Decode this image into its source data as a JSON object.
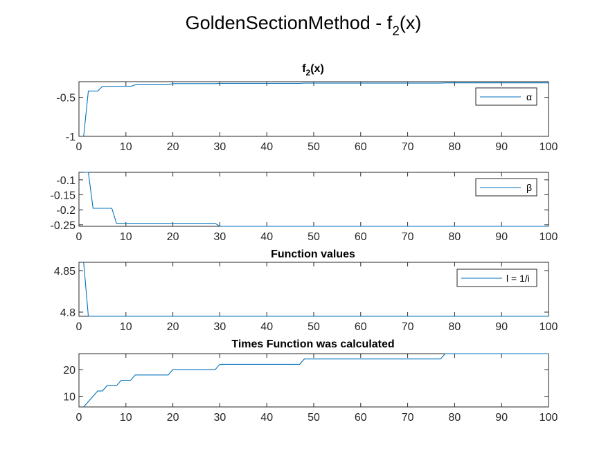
{
  "figure": {
    "title_main": "GoldenSectionMethod - f",
    "title_sub": "2",
    "title_tail": "(x)"
  },
  "chart_data": [
    {
      "type": "line",
      "title": "f",
      "title_sub": "2",
      "title_tail": "(x)",
      "xlim": [
        0,
        100
      ],
      "ylim": [
        -1,
        -0.3
      ],
      "xticks": [
        0,
        10,
        20,
        30,
        40,
        50,
        60,
        70,
        80,
        90,
        100
      ],
      "yticks": [
        -1,
        -0.5
      ],
      "ytick_labels": [
        "-1",
        "-0.5"
      ],
      "legend": "top-right",
      "series": [
        {
          "name": "α",
          "color": "#0072BD",
          "x": [
            1,
            2,
            3,
            4,
            5,
            6,
            7,
            8,
            9,
            10,
            11,
            12,
            13,
            14,
            15,
            16,
            17,
            18,
            19,
            20,
            21,
            22,
            23,
            24,
            25,
            26,
            27,
            28,
            29,
            30,
            31,
            32,
            33,
            34,
            35,
            36,
            37,
            38,
            39,
            40,
            41,
            42,
            43,
            44,
            45,
            46,
            47,
            48,
            49,
            50,
            51,
            52,
            53,
            54,
            55,
            56,
            57,
            58,
            59,
            60,
            61,
            62,
            63,
            64,
            65,
            66,
            67,
            68,
            69,
            70,
            71,
            72,
            73,
            74,
            75,
            76,
            77,
            78,
            79,
            80,
            81,
            82,
            83,
            84,
            85,
            86,
            87,
            88,
            89,
            90,
            91,
            92,
            93,
            94,
            95,
            96,
            97,
            98,
            99,
            100
          ],
          "y": [
            -1,
            -0.42,
            -0.42,
            -0.42,
            -0.36,
            -0.36,
            -0.36,
            -0.36,
            -0.36,
            -0.36,
            -0.36,
            -0.34,
            -0.34,
            -0.34,
            -0.34,
            -0.34,
            -0.34,
            -0.34,
            -0.34,
            -0.325,
            -0.325,
            -0.325,
            -0.325,
            -0.325,
            -0.325,
            -0.325,
            -0.325,
            -0.325,
            -0.325,
            -0.322,
            -0.322,
            -0.322,
            -0.322,
            -0.322,
            -0.322,
            -0.322,
            -0.322,
            -0.322,
            -0.322,
            -0.322,
            -0.322,
            -0.322,
            -0.322,
            -0.322,
            -0.322,
            -0.322,
            -0.322,
            -0.318,
            -0.318,
            -0.318,
            -0.318,
            -0.318,
            -0.318,
            -0.318,
            -0.318,
            -0.318,
            -0.318,
            -0.318,
            -0.318,
            -0.318,
            -0.318,
            -0.318,
            -0.318,
            -0.318,
            -0.318,
            -0.318,
            -0.318,
            -0.318,
            -0.318,
            -0.318,
            -0.318,
            -0.318,
            -0.318,
            -0.318,
            -0.318,
            -0.318,
            -0.318,
            -0.315,
            -0.315,
            -0.315,
            -0.315,
            -0.315,
            -0.315,
            -0.315,
            -0.315,
            -0.315,
            -0.315,
            -0.315,
            -0.315,
            -0.315,
            -0.315,
            -0.315,
            -0.315,
            -0.315,
            -0.315,
            -0.315,
            -0.315,
            -0.315,
            -0.315,
            -0.315
          ]
        }
      ]
    },
    {
      "type": "line",
      "title": "",
      "xlim": [
        0,
        100
      ],
      "ylim": [
        -0.255,
        -0.075
      ],
      "xticks": [
        0,
        10,
        20,
        30,
        40,
        50,
        60,
        70,
        80,
        90,
        100
      ],
      "yticks": [
        -0.25,
        -0.2,
        -0.15,
        -0.1
      ],
      "ytick_labels": [
        "-0.25",
        "-0.2",
        "-0.15",
        "-0.1"
      ],
      "legend": "top-right",
      "series": [
        {
          "name": "β",
          "color": "#0072BD",
          "x": [
            1,
            2,
            3,
            4,
            5,
            6,
            7,
            8,
            9,
            10,
            11,
            12,
            13,
            14,
            15,
            16,
            17,
            18,
            19,
            20,
            21,
            22,
            23,
            24,
            25,
            26,
            27,
            28,
            29,
            30,
            31,
            32,
            33,
            34,
            35,
            36,
            37,
            38,
            39,
            40,
            41,
            42,
            43,
            44,
            45,
            46,
            47,
            48,
            49,
            50,
            51,
            52,
            53,
            54,
            55,
            56,
            57,
            58,
            59,
            60,
            61,
            62,
            63,
            64,
            65,
            66,
            67,
            68,
            69,
            70,
            71,
            72,
            73,
            74,
            75,
            76,
            77,
            78,
            79,
            80,
            81,
            82,
            83,
            84,
            85,
            86,
            87,
            88,
            89,
            90,
            91,
            92,
            93,
            94,
            95,
            96,
            97,
            98,
            99,
            100
          ],
          "y": [
            -0.075,
            -0.075,
            -0.195,
            -0.195,
            -0.195,
            -0.195,
            -0.195,
            -0.245,
            -0.245,
            -0.245,
            -0.245,
            -0.245,
            -0.245,
            -0.245,
            -0.245,
            -0.245,
            -0.245,
            -0.245,
            -0.245,
            -0.245,
            -0.245,
            -0.245,
            -0.245,
            -0.245,
            -0.245,
            -0.245,
            -0.245,
            -0.245,
            -0.245,
            -0.255,
            -0.255,
            -0.255,
            -0.255,
            -0.255,
            -0.255,
            -0.255,
            -0.255,
            -0.255,
            -0.255,
            -0.255,
            -0.255,
            -0.255,
            -0.255,
            -0.255,
            -0.255,
            -0.255,
            -0.255,
            -0.255,
            -0.255,
            -0.255,
            -0.255,
            -0.255,
            -0.255,
            -0.255,
            -0.255,
            -0.255,
            -0.255,
            -0.255,
            -0.255,
            -0.255,
            -0.255,
            -0.255,
            -0.255,
            -0.255,
            -0.255,
            -0.255,
            -0.255,
            -0.255,
            -0.255,
            -0.255,
            -0.255,
            -0.255,
            -0.255,
            -0.255,
            -0.255,
            -0.255,
            -0.255,
            -0.255,
            -0.255,
            -0.255,
            -0.255,
            -0.255,
            -0.255,
            -0.255,
            -0.255,
            -0.255,
            -0.255,
            -0.255,
            -0.255,
            -0.255,
            -0.255,
            -0.255,
            -0.255,
            -0.255,
            -0.255,
            -0.255,
            -0.255,
            -0.255,
            -0.255,
            -0.255
          ]
        }
      ]
    },
    {
      "type": "line",
      "title": "Function values",
      "xlim": [
        0,
        100
      ],
      "ylim": [
        4.795,
        4.86
      ],
      "xticks": [
        0,
        10,
        20,
        30,
        40,
        50,
        60,
        70,
        80,
        90,
        100
      ],
      "yticks": [
        4.8,
        4.85
      ],
      "ytick_labels": [
        "4.8",
        "4.85"
      ],
      "legend": "top-right",
      "series": [
        {
          "name": "l = 1/i",
          "color": "#0072BD",
          "x": [
            1,
            2,
            3,
            4,
            5,
            6,
            7,
            8,
            9,
            10,
            11,
            12,
            13,
            14,
            15,
            16,
            17,
            18,
            19,
            20,
            21,
            22,
            23,
            24,
            25,
            26,
            27,
            28,
            29,
            30,
            31,
            32,
            33,
            34,
            35,
            36,
            37,
            38,
            39,
            40,
            41,
            42,
            43,
            44,
            45,
            46,
            47,
            48,
            49,
            50,
            51,
            52,
            53,
            54,
            55,
            56,
            57,
            58,
            59,
            60,
            61,
            62,
            63,
            64,
            65,
            66,
            67,
            68,
            69,
            70,
            71,
            72,
            73,
            74,
            75,
            76,
            77,
            78,
            79,
            80,
            81,
            82,
            83,
            84,
            85,
            86,
            87,
            88,
            89,
            90,
            91,
            92,
            93,
            94,
            95,
            96,
            97,
            98,
            99,
            100
          ],
          "y": [
            4.86,
            4.795,
            4.795,
            4.795,
            4.795,
            4.795,
            4.795,
            4.795,
            4.795,
            4.795,
            4.795,
            4.795,
            4.795,
            4.795,
            4.795,
            4.795,
            4.795,
            4.795,
            4.795,
            4.795,
            4.795,
            4.795,
            4.795,
            4.795,
            4.795,
            4.795,
            4.795,
            4.795,
            4.795,
            4.795,
            4.795,
            4.795,
            4.795,
            4.795,
            4.795,
            4.795,
            4.795,
            4.795,
            4.795,
            4.795,
            4.795,
            4.795,
            4.795,
            4.795,
            4.795,
            4.795,
            4.795,
            4.795,
            4.795,
            4.795,
            4.795,
            4.795,
            4.795,
            4.795,
            4.795,
            4.795,
            4.795,
            4.795,
            4.795,
            4.795,
            4.795,
            4.795,
            4.795,
            4.795,
            4.795,
            4.795,
            4.795,
            4.795,
            4.795,
            4.795,
            4.795,
            4.795,
            4.795,
            4.795,
            4.795,
            4.795,
            4.795,
            4.795,
            4.795,
            4.795,
            4.795,
            4.795,
            4.795,
            4.795,
            4.795,
            4.795,
            4.795,
            4.795,
            4.795,
            4.795,
            4.795,
            4.795,
            4.795,
            4.795,
            4.795,
            4.795,
            4.795,
            4.795,
            4.795,
            4.795
          ]
        }
      ]
    },
    {
      "type": "line",
      "title": "Times Function was calculated",
      "xlim": [
        0,
        100
      ],
      "ylim": [
        6,
        26
      ],
      "xticks": [
        0,
        10,
        20,
        30,
        40,
        50,
        60,
        70,
        80,
        90,
        100
      ],
      "yticks": [
        10,
        20
      ],
      "ytick_labels": [
        "10",
        "20"
      ],
      "legend": "none",
      "series": [
        {
          "color": "#0072BD",
          "x": [
            1,
            2,
            3,
            4,
            5,
            6,
            7,
            8,
            9,
            10,
            11,
            12,
            13,
            14,
            15,
            16,
            17,
            18,
            19,
            20,
            21,
            22,
            23,
            24,
            25,
            26,
            27,
            28,
            29,
            30,
            31,
            32,
            33,
            34,
            35,
            36,
            37,
            38,
            39,
            40,
            41,
            42,
            43,
            44,
            45,
            46,
            47,
            48,
            49,
            50,
            51,
            52,
            53,
            54,
            55,
            56,
            57,
            58,
            59,
            60,
            61,
            62,
            63,
            64,
            65,
            66,
            67,
            68,
            69,
            70,
            71,
            72,
            73,
            74,
            75,
            76,
            77,
            78,
            79,
            80,
            81,
            82,
            83,
            84,
            85,
            86,
            87,
            88,
            89,
            90,
            91,
            92,
            93,
            94,
            95,
            96,
            97,
            98,
            99,
            100
          ],
          "y": [
            6,
            8,
            10,
            12,
            12,
            14,
            14,
            14,
            16,
            16,
            16,
            18,
            18,
            18,
            18,
            18,
            18,
            18,
            18,
            20,
            20,
            20,
            20,
            20,
            20,
            20,
            20,
            20,
            20,
            22,
            22,
            22,
            22,
            22,
            22,
            22,
            22,
            22,
            22,
            22,
            22,
            22,
            22,
            22,
            22,
            22,
            22,
            24,
            24,
            24,
            24,
            24,
            24,
            24,
            24,
            24,
            24,
            24,
            24,
            24,
            24,
            24,
            24,
            24,
            24,
            24,
            24,
            24,
            24,
            24,
            24,
            24,
            24,
            24,
            24,
            24,
            24,
            26,
            26,
            26,
            26,
            26,
            26,
            26,
            26,
            26,
            26,
            26,
            26,
            26,
            26,
            26,
            26,
            26,
            26,
            26,
            26,
            26,
            26,
            26
          ]
        }
      ]
    }
  ]
}
